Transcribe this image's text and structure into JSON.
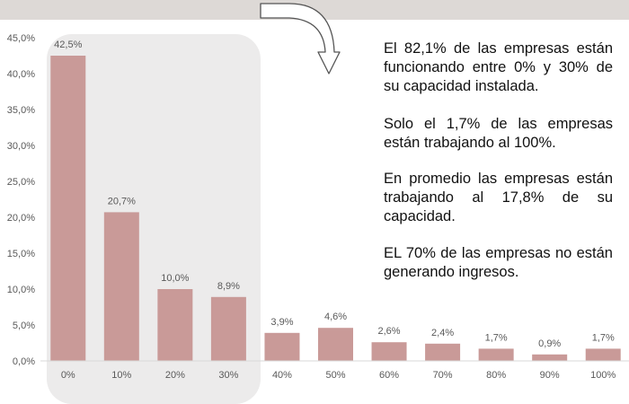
{
  "chart_data": {
    "type": "bar",
    "categories": [
      "0%",
      "10%",
      "20%",
      "30%",
      "40%",
      "50%",
      "60%",
      "70%",
      "80%",
      "90%",
      "100%"
    ],
    "values": [
      42.5,
      20.7,
      10.0,
      8.9,
      3.9,
      4.6,
      2.6,
      2.4,
      1.7,
      0.9,
      1.7
    ],
    "data_labels": [
      "42,5%",
      "20,7%",
      "10,0%",
      "8,9%",
      "3,9%",
      "4,6%",
      "2,6%",
      "2,4%",
      "1,7%",
      "0,9%",
      "1,7%"
    ],
    "y_ticks": [
      0,
      5,
      10,
      15,
      20,
      25,
      30,
      35,
      40,
      45
    ],
    "y_tick_labels": [
      "0,0%",
      "5,0%",
      "10,0%",
      "15,0%",
      "20,0%",
      "25,0%",
      "30,0%",
      "35,0%",
      "40,0%",
      "45,0%"
    ],
    "ylim": [
      0,
      45
    ],
    "grid": false,
    "bar_color": "#c99a98",
    "highlight_categories": [
      "0%",
      "10%",
      "20%",
      "30%"
    ],
    "highlight_color": "#ecebeb"
  },
  "annotations": [
    "El 82,1% de las empresas están funcionando entre 0% y 30% de su capacidad instalada.",
    "Solo el 1,7% de las empresas están trabajando al 100%.",
    "En promedio las empresas están trabajando al 17,8% de su capacidad.",
    "EL 70% de las empresas no están generando ingresos."
  ],
  "colors": {
    "top_band": "#ddd9d6",
    "axis": "#d9d9d9",
    "text": "#595959",
    "arrow_stroke": "#555555"
  },
  "icons": {
    "arrow": "curved-arrow-down-icon"
  }
}
